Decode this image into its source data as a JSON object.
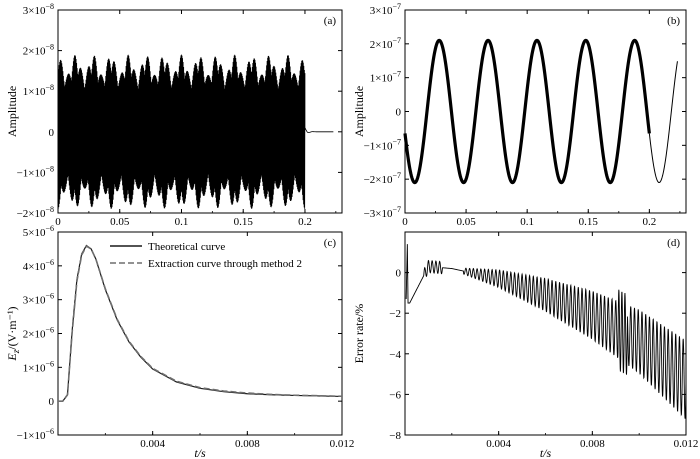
{
  "chart_data": [
    {
      "id": "a",
      "type": "line",
      "panel_label": "(a)",
      "ylabel": "Amplitude",
      "xlabel": "",
      "xlim": [
        0,
        0.23
      ],
      "ylim": [
        -2e-08,
        3e-08
      ],
      "xticks": [
        0,
        0.05,
        0.1,
        0.15,
        0.2
      ],
      "xtick_labels": [
        "0",
        "0.05",
        "0.1",
        "0.15",
        "0.2"
      ],
      "yticks": [
        -2e-08,
        -1e-08,
        0,
        1e-08,
        2e-08,
        3e-08
      ],
      "ytick_labels": [
        {
          "m": "−2×10",
          "e": "−8"
        },
        {
          "m": "−1×10",
          "e": "−8"
        },
        {
          "m": "0",
          "e": ""
        },
        {
          "m": "1×10",
          "e": "−8"
        },
        {
          "m": "2×10",
          "e": "−8"
        },
        {
          "m": "3×10",
          "e": "−8"
        }
      ],
      "grid": false,
      "series": [
        {
          "signal": "dense oscillation, envelope 1.4e-8 to 1.9e-8 with 14 beats, cuts off at t=0.2 s, then decaying tail",
          "color": "#000000"
        }
      ]
    },
    {
      "id": "b",
      "type": "line",
      "panel_label": "(b)",
      "ylabel": "Amplitude",
      "xlabel": "",
      "xlim": [
        0,
        0.23
      ],
      "ylim": [
        -3e-07,
        3e-07
      ],
      "xticks": [
        0,
        0.05,
        0.1,
        0.15,
        0.2
      ],
      "xtick_labels": [
        "0",
        "0.05",
        "0.1",
        "0.15",
        "0.2"
      ],
      "yticks": [
        -3e-07,
        -2e-07,
        -1e-07,
        0,
        1e-07,
        2e-07,
        3e-07
      ],
      "ytick_labels": [
        {
          "m": "−3×10",
          "e": "−7"
        },
        {
          "m": "−2×10",
          "e": "−7"
        },
        {
          "m": "−1×10",
          "e": "−7"
        },
        {
          "m": "0",
          "e": ""
        },
        {
          "m": "1×10",
          "e": "−7"
        },
        {
          "m": "2×10",
          "e": "−7"
        },
        {
          "m": "3×10",
          "e": "−7"
        }
      ],
      "grid": false,
      "series": [
        {
          "signal": "sinusoid, amplitude 2.1e-7, period 0.04 s, thick band up to t=0.2 s then thin line",
          "color": "#000000"
        }
      ]
    },
    {
      "id": "c",
      "type": "line",
      "panel_label": "(c)",
      "ylabel": "E_z/(V·m⁻¹)",
      "xlabel": "t/s",
      "xlim": [
        0,
        0.012
      ],
      "ylim": [
        -1e-06,
        5e-06
      ],
      "xticks": [
        0.004,
        0.008,
        0.012
      ],
      "xtick_labels": [
        "0.004",
        "0.008",
        "0.012"
      ],
      "yticks": [
        -1e-06,
        0,
        1e-06,
        2e-06,
        3e-06,
        4e-06,
        5e-06
      ],
      "ytick_labels": [
        {
          "m": "−1×10",
          "e": "−6"
        },
        {
          "m": "0",
          "e": ""
        },
        {
          "m": "1×10",
          "e": "−6"
        },
        {
          "m": "2×10",
          "e": "−6"
        },
        {
          "m": "3×10",
          "e": "−6"
        },
        {
          "m": "4×10",
          "e": "−6"
        },
        {
          "m": "5×10",
          "e": "−6"
        }
      ],
      "grid": false,
      "legend_position": "top-right",
      "series": [
        {
          "name": "Theoretical curve",
          "style": "solid",
          "color": "#1a1a1a",
          "x": [
            0,
            0.0002,
            0.0004,
            0.0006,
            0.0008,
            0.001,
            0.0012,
            0.0014,
            0.0016,
            0.0018,
            0.002,
            0.0025,
            0.003,
            0.0035,
            0.004,
            0.005,
            0.006,
            0.007,
            0.008,
            0.009,
            0.01,
            0.011,
            0.012
          ],
          "y": [
            0,
            0.0,
            1.8e-07,
            2.1e-06,
            3.6e-06,
            4.35e-06,
            4.6e-06,
            4.5e-06,
            4.2e-06,
            3.75e-06,
            3.3e-06,
            2.4e-06,
            1.75e-06,
            1.3e-06,
            9.5e-07,
            5.7e-07,
            3.8e-07,
            2.8e-07,
            2.2e-07,
            1.9e-07,
            1.7e-07,
            1.55e-07,
            1.4e-07
          ]
        },
        {
          "name": "Extraction curve through method 2",
          "style": "dashed",
          "color": "#6e6e6e",
          "x": [
            0,
            0.0002,
            0.0004,
            0.0006,
            0.0008,
            0.001,
            0.0012,
            0.0014,
            0.0016,
            0.0018,
            0.002,
            0.0025,
            0.003,
            0.0035,
            0.004,
            0.005,
            0.006,
            0.007,
            0.008,
            0.009,
            0.01,
            0.011,
            0.012
          ],
          "y": [
            0,
            0.0,
            1.9e-07,
            2.05e-06,
            3.55e-06,
            4.32e-06,
            4.58e-06,
            4.5e-06,
            4.2e-06,
            3.76e-06,
            3.32e-06,
            2.42e-06,
            1.77e-06,
            1.32e-06,
            9.7e-07,
            5.9e-07,
            4e-07,
            3e-07,
            2.4e-07,
            2e-07,
            1.75e-07,
            1.6e-07,
            1.45e-07
          ]
        }
      ]
    },
    {
      "id": "d",
      "type": "line",
      "panel_label": "(d)",
      "ylabel": "Error rate/%",
      "xlabel": "t/s",
      "xlim": [
        0,
        0.012
      ],
      "ylim": [
        -8,
        2
      ],
      "xticks": [
        0.004,
        0.008,
        0.012
      ],
      "xtick_labels": [
        "0.004",
        "0.008",
        "0.012"
      ],
      "yticks": [
        -8,
        -6,
        -4,
        -2,
        0
      ],
      "ytick_labels": [
        {
          "m": "−8",
          "e": ""
        },
        {
          "m": "−6",
          "e": ""
        },
        {
          "m": "−4",
          "e": ""
        },
        {
          "m": "−2",
          "e": ""
        },
        {
          "m": "0",
          "e": ""
        }
      ],
      "grid": false,
      "series": [
        {
          "signal": "oscillating error, spike near t=0.0001, baseline from 0.3 to -5.3 with growing amplitude, spikes near t=0.0093",
          "color": "#000000",
          "trend_x": [
            0.0002,
            0.001,
            0.002,
            0.004,
            0.006,
            0.008,
            0.01,
            0.012
          ],
          "trend_y": [
            -1.5,
            0.3,
            0.2,
            -0.3,
            -1.1,
            -2.1,
            -3.4,
            -5.3
          ]
        }
      ]
    }
  ]
}
